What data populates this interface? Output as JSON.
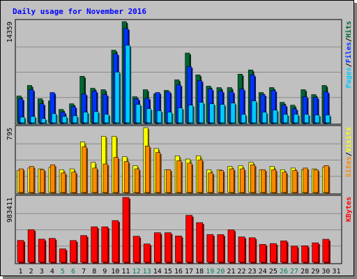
{
  "chart_data": {
    "type": "bar",
    "title": "Daily usage for November 2016",
    "colors": {
      "background": "#c0c0c0",
      "title_text": "#0000ff",
      "hits": "#006633",
      "files": "#0033ff",
      "pages": "#00ccff",
      "visits": "#ffff00",
      "sites": "#ff8800",
      "kbytes": "#ff0000",
      "weekend_label": "#00805a",
      "weekday_label": "#000000"
    },
    "x": {
      "days": [
        "1",
        "2",
        "3",
        "4",
        "5",
        "6",
        "7",
        "8",
        "9",
        "10",
        "11",
        "12",
        "13",
        "14",
        "15",
        "16",
        "17",
        "18",
        "19",
        "20",
        "21",
        "22",
        "23",
        "24",
        "25",
        "26",
        "27",
        "28",
        "29",
        "30",
        "31"
      ],
      "weekend_days": [
        "5",
        "6",
        "12",
        "13",
        "19",
        "20",
        "26",
        "27"
      ]
    },
    "panels": [
      {
        "id": "hits-files-pages",
        "max_label": "14359",
        "ymax": 14359,
        "legend": [
          {
            "text": "Pages",
            "color": "#00ccff"
          },
          {
            "text": "/",
            "color": "#000000"
          },
          {
            "text": "Files",
            "color": "#0033ff"
          },
          {
            "text": "/",
            "color": "#000000"
          },
          {
            "text": "Hits",
            "color": "#006633"
          }
        ],
        "series": [
          {
            "name": "Hits",
            "color": "#006633",
            "values": [
              3800,
              5300,
              3400,
              3100,
              1900,
              2700,
              6600,
              4900,
              4700,
              10300,
              14359,
              3700,
              4700,
              4100,
              4600,
              6100,
              9900,
              6800,
              5200,
              5000,
              5000,
              6900,
              7500,
              4300,
              5000,
              2900,
              2500,
              4700,
              4000,
              5300,
              0
            ]
          },
          {
            "name": "Files",
            "color": "#0033ff",
            "values": [
              3400,
              4700,
              2700,
              4300,
              1500,
              2300,
              4100,
              4500,
              4000,
              9800,
              13400,
              3400,
              3500,
              4300,
              4400,
              5400,
              8000,
              6000,
              4800,
              4500,
              4400,
              4800,
              6800,
              4000,
              4600,
              2500,
              2000,
              3700,
              3600,
              4400,
              0
            ]
          },
          {
            "name": "Pages",
            "color": "#00ccff",
            "values": [
              800,
              900,
              600,
              1300,
              900,
              1000,
              1500,
              1600,
              1200,
              7200,
              11000,
              2600,
              2000,
              1700,
              1500,
              2100,
              2500,
              2900,
              2700,
              2600,
              2800,
              1200,
              3100,
              1500,
              1800,
              1200,
              1200,
              1200,
              1100,
              1100,
              0
            ]
          }
        ]
      },
      {
        "id": "visits-sites",
        "max_label": "795",
        "ymax": 795,
        "legend": [
          {
            "text": "Sites",
            "color": "#ff8800"
          },
          {
            "text": "/",
            "color": "#000000"
          },
          {
            "text": "Visits",
            "color": "#ffff00"
          }
        ],
        "series": [
          {
            "name": "Visits",
            "color": "#ffff00",
            "values": [
              270,
              300,
              290,
              310,
              280,
              290,
              620,
              370,
              690,
              690,
              440,
              330,
              795,
              540,
              280,
              450,
              410,
              450,
              280,
              280,
              320,
              330,
              370,
              280,
              320,
              280,
              300,
              280,
              290,
              310,
              0
            ]
          },
          {
            "name": "Sites",
            "color": "#ff8800",
            "values": [
              290,
              320,
              280,
              340,
              240,
              250,
              560,
              300,
              350,
              430,
              380,
              290,
              570,
              490,
              280,
              390,
              360,
              400,
              240,
              270,
              290,
              290,
              340,
              280,
              280,
              250,
              270,
              300,
              280,
              330,
              0
            ]
          }
        ]
      },
      {
        "id": "kbytes",
        "max_label": "983411",
        "ymax": 983411,
        "legend": [
          {
            "text": "KBytes",
            "color": "#ff0000"
          }
        ],
        "series": [
          {
            "name": "KBytes",
            "color": "#ff0000",
            "values": [
              332000,
              495000,
              351000,
              362000,
              203000,
              330000,
              405000,
              538000,
              538000,
              632000,
              983411,
              395000,
              278000,
              448000,
              448000,
              399000,
              712000,
              601000,
              421000,
              420000,
              493000,
              385000,
              372000,
              271000,
              284000,
              325000,
              246000,
              250000,
              295000,
              349000,
              0
            ]
          }
        ]
      }
    ]
  }
}
